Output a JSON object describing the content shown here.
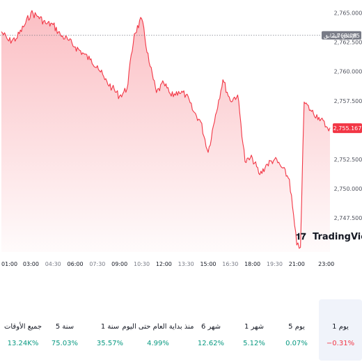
{
  "colors": {
    "line": "#f23645",
    "positive": "#089981",
    "negative": "#f23645",
    "prev_close_tag": "#787b86",
    "price_tag": "#f23645"
  },
  "chart_data": {
    "type": "area",
    "x_ticks": [
      "01:00",
      "03:00",
      "04:30",
      "06:00",
      "07:30",
      "09:00",
      "10:30",
      "12:00",
      "13:30",
      "15:00",
      "16:30",
      "18:00",
      "19:30",
      "21:00",
      "23:00"
    ],
    "minor_x_ticks": [
      "04:30",
      "07:30",
      "10:30",
      "13:30",
      "16:30",
      "19:30"
    ],
    "y_ticks": [
      "2,765.000",
      "2,762.500",
      "2,760.000",
      "2,757.500",
      "2,755.000",
      "2,752.500",
      "2,750.000",
      "2,747.500"
    ],
    "y_tick_values": [
      2765,
      2762.5,
      2760,
      2757.5,
      2755,
      2752.5,
      2750,
      2747.5
    ],
    "ylim": [
      2744.6,
      2766.1
    ],
    "x": [
      "01:00",
      "01:30",
      "02:00",
      "02:30",
      "03:00",
      "03:30",
      "04:00",
      "04:30",
      "05:00",
      "05:30",
      "06:00",
      "06:30",
      "07:00",
      "07:30",
      "08:00",
      "08:30",
      "09:00",
      "09:30",
      "10:00",
      "10:30",
      "11:00",
      "11:30",
      "12:00",
      "12:30",
      "13:00",
      "13:30",
      "14:00",
      "14:30",
      "15:00",
      "15:30",
      "16:00",
      "16:30",
      "17:00",
      "17:30",
      "18:00",
      "18:30",
      "19:00",
      "19:30",
      "20:00",
      "20:30",
      "21:00",
      "21:15",
      "21:30",
      "22:00",
      "22:30",
      "23:00",
      "23:15"
    ],
    "y": [
      2763.4,
      2762.6,
      2762.8,
      2763.8,
      2765.0,
      2764.7,
      2764.1,
      2764.0,
      2763.1,
      2762.7,
      2762.1,
      2761.6,
      2761.0,
      2760.5,
      2759.3,
      2758.6,
      2757.9,
      2758.5,
      2763.2,
      2764.5,
      2760.8,
      2758.2,
      2759.0,
      2757.9,
      2758.3,
      2758.0,
      2756.6,
      2755.7,
      2753.1,
      2756.3,
      2759.3,
      2757.5,
      2758.0,
      2752.3,
      2752.6,
      2751.2,
      2752.1,
      2752.5,
      2751.8,
      2750.8,
      2745.2,
      2745.0,
      2757.4,
      2756.6,
      2756.1,
      2755.3,
      2755.2
    ],
    "reference_line": {
      "label": "الإغلاق السابق",
      "value": "2,763.085",
      "y": 2763.085
    },
    "last_price": {
      "value": "2,755.167",
      "y": 2755.167
    },
    "watermark": "TradingView"
  },
  "performance": [
    {
      "label": "1 يوم",
      "value": "−0.31%",
      "trend": "neg",
      "active": true
    },
    {
      "label": "5 يوم",
      "value": "0.07%",
      "trend": "pos",
      "active": false
    },
    {
      "label": "1 شهر",
      "value": "5.12%",
      "trend": "pos",
      "active": false
    },
    {
      "label": "6 شهر",
      "value": "12.62%",
      "trend": "pos",
      "active": false
    },
    {
      "label": "منذ بداية العام حتى اليوم",
      "value": "4.99%",
      "trend": "pos",
      "active": false
    },
    {
      "label": "1 سنة",
      "value": "35.57%",
      "trend": "pos",
      "active": false
    },
    {
      "label": "5 سنة",
      "value": "75.03%",
      "trend": "pos",
      "active": false
    },
    {
      "label": "جميع الأوقات",
      "value": "13.24K%",
      "trend": "pos",
      "active": false
    }
  ]
}
